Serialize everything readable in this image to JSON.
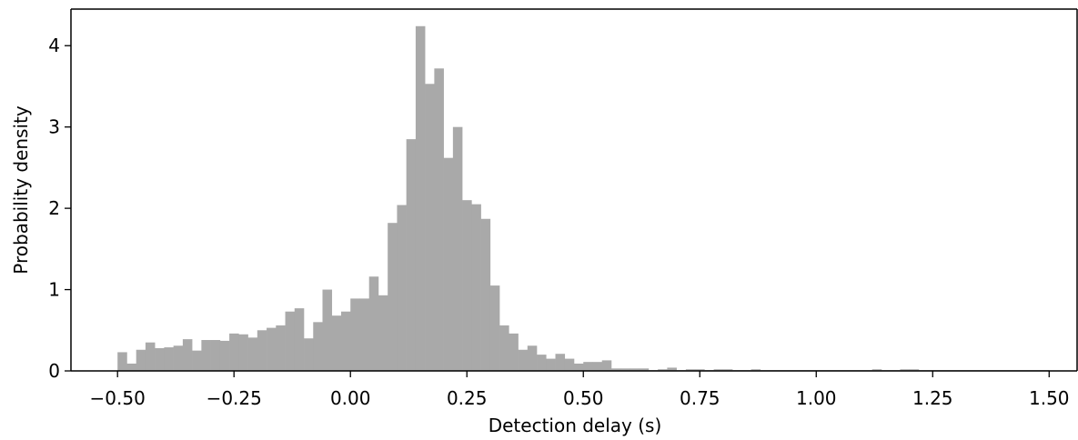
{
  "chart_data": {
    "type": "bar",
    "xlabel": "Detection delay (s)",
    "ylabel": "Probability density",
    "xlim": [
      -0.6,
      1.56
    ],
    "ylim": [
      0,
      4.45
    ],
    "xticks": [
      "−0.50",
      "−0.25",
      "0.00",
      "0.25",
      "0.50",
      "0.75",
      "1.00",
      "1.25",
      "1.50"
    ],
    "xtick_values": [
      -0.5,
      -0.25,
      0.0,
      0.25,
      0.5,
      0.75,
      1.0,
      1.25,
      1.5
    ],
    "yticks": [
      "0",
      "1",
      "2",
      "3",
      "4"
    ],
    "ytick_values": [
      0,
      1,
      2,
      3,
      4
    ],
    "bin_start": -0.5,
    "bin_width": 0.02,
    "values": [
      0.23,
      0.09,
      0.26,
      0.35,
      0.28,
      0.29,
      0.31,
      0.39,
      0.25,
      0.38,
      0.38,
      0.37,
      0.46,
      0.45,
      0.41,
      0.5,
      0.53,
      0.56,
      0.73,
      0.77,
      0.4,
      0.6,
      1.0,
      0.68,
      0.73,
      0.89,
      0.89,
      1.16,
      0.93,
      1.82,
      2.04,
      2.85,
      4.24,
      3.53,
      3.72,
      2.62,
      3.0,
      2.1,
      2.05,
      1.87,
      1.05,
      0.56,
      0.46,
      0.26,
      0.31,
      0.2,
      0.15,
      0.21,
      0.15,
      0.09,
      0.11,
      0.11,
      0.13,
      0.03,
      0.03,
      0.03,
      0.03,
      0.01,
      0.02,
      0.04,
      0.01,
      0.02,
      0.02,
      0.01,
      0.02,
      0.02,
      0.01,
      0.01,
      0.02,
      0.01,
      0.01,
      0.01,
      0.01,
      0.01,
      0.01,
      0.01,
      0.01,
      0.01,
      0.01,
      0.01,
      0.01,
      0.02,
      0.01,
      0.01,
      0.02,
      0.02,
      0.01,
      0.01,
      0.01,
      0.01,
      0.01,
      0.01,
      0.01,
      0.01,
      0.01,
      0.01,
      0.01,
      0.01,
      0.01,
      0.01
    ],
    "bar_color": "#a9a9a9",
    "grid": false
  }
}
